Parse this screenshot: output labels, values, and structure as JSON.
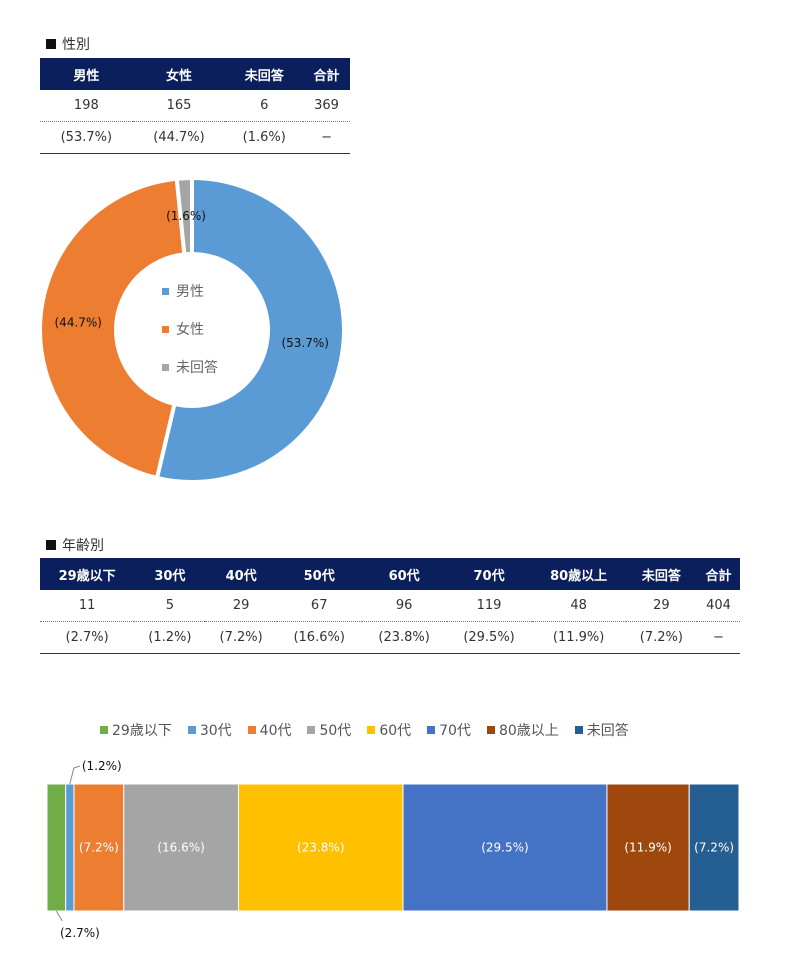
{
  "gender": {
    "title": "性別",
    "table": {
      "headers": [
        "男性",
        "女性",
        "未回答",
        "合計"
      ],
      "counts": [
        "198",
        "165",
        "6",
        "369"
      ],
      "percents": [
        "(53.7%)",
        "(44.7%)",
        "(1.6%)",
        "−"
      ]
    }
  },
  "age": {
    "title": "年齢別",
    "table": {
      "headers": [
        "29歳以下",
        "30代",
        "40代",
        "50代",
        "60代",
        "70代",
        "80歳以上",
        "未回答",
        "合計"
      ],
      "counts": [
        "11",
        "5",
        "29",
        "67",
        "96",
        "119",
        "48",
        "29",
        "404"
      ],
      "percents": [
        "(2.7%)",
        "(1.2%)",
        "(7.2%)",
        "(16.6%)",
        "(23.8%)",
        "(29.5%)",
        "(11.9%)",
        "(7.2%)",
        "−"
      ]
    }
  },
  "chart_data": [
    {
      "type": "pie",
      "variant": "donut",
      "categories": [
        "男性",
        "女性",
        "未回答"
      ],
      "values": [
        53.7,
        44.7,
        1.6
      ],
      "labels": [
        "(53.7%)",
        "(44.7%)",
        "(1.6%)"
      ],
      "colors": [
        "#5b9bd5",
        "#ed7d31",
        "#a5a5a5"
      ],
      "legend": "center"
    },
    {
      "type": "bar",
      "variant": "100% stacked horizontal",
      "categories": [
        "29歳以下",
        "30代",
        "40代",
        "50代",
        "60代",
        "70代",
        "80歳以上",
        "未回答"
      ],
      "values": [
        2.7,
        1.2,
        7.2,
        16.6,
        23.8,
        29.5,
        11.9,
        7.2
      ],
      "labels": [
        "(2.7%)",
        "(1.2%)",
        "(7.2%)",
        "(16.6%)",
        "(23.8%)",
        "(29.5%)",
        "(11.9%)",
        "(7.2%)"
      ],
      "colors": [
        "#70ad47",
        "#5b9bd5",
        "#ed7d31",
        "#a5a5a5",
        "#ffc000",
        "#4472c4",
        "#9e480e",
        "#255e91"
      ],
      "legend": "top"
    }
  ]
}
